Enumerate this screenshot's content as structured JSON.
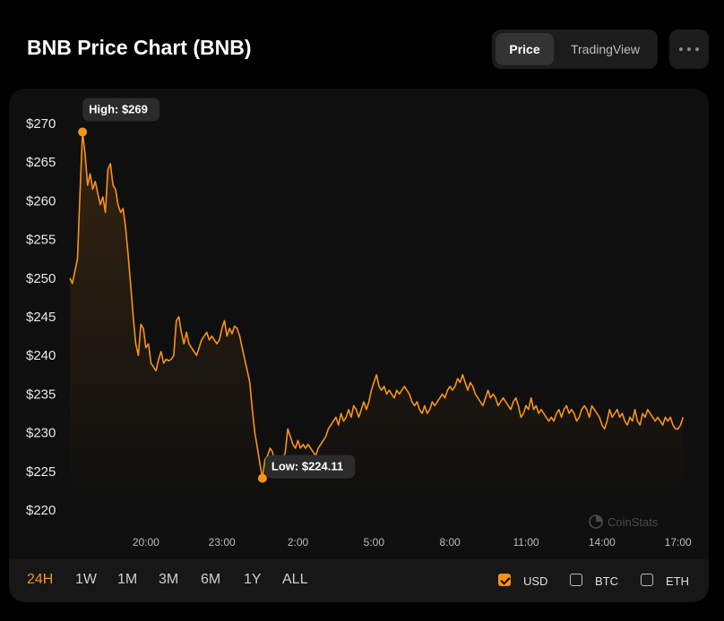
{
  "title": "BNB Price Chart (BNB)",
  "view_toggle": {
    "active": "Price",
    "inactive": "TradingView"
  },
  "more_icon": "more-dots-icon",
  "watermark": {
    "icon": "coinstats-logo-icon",
    "text": "CoinStats"
  },
  "timeframes": [
    {
      "label": "24H",
      "active": true
    },
    {
      "label": "1W",
      "active": false
    },
    {
      "label": "1M",
      "active": false
    },
    {
      "label": "3M",
      "active": false
    },
    {
      "label": "6M",
      "active": false
    },
    {
      "label": "1Y",
      "active": false
    },
    {
      "label": "ALL",
      "active": false
    }
  ],
  "currencies": [
    {
      "label": "USD",
      "checked": true
    },
    {
      "label": "BTC",
      "checked": false
    },
    {
      "label": "ETH",
      "checked": false
    }
  ],
  "colors": {
    "accent": "#f7931a",
    "background": "#000000",
    "panel": "#0f0f0f"
  },
  "chart_data": {
    "type": "area",
    "y_tick_labels": [
      "$270",
      "$265",
      "$260",
      "$255",
      "$250",
      "$245",
      "$240",
      "$235",
      "$230",
      "$225",
      "$220"
    ],
    "y_ticks": [
      270,
      265,
      260,
      255,
      250,
      245,
      240,
      235,
      230,
      225,
      220
    ],
    "ylim": [
      220,
      270
    ],
    "x_tick_labels": [
      "20:00",
      "23:00",
      "2:00",
      "5:00",
      "8:00",
      "11:00",
      "14:00",
      "17:00"
    ],
    "x_tick_hours": [
      3,
      6,
      9,
      12,
      15,
      18,
      21,
      24
    ],
    "xlim": [
      0,
      24.4
    ],
    "high": {
      "label": "High: $269",
      "hours": 0.5,
      "value": 268.9
    },
    "low": {
      "label": "Low: $224.11",
      "hours": 7.6,
      "value": 224.11
    },
    "series": [
      {
        "values": [
          [
            0.0,
            250.0
          ],
          [
            0.1,
            249.3
          ],
          [
            0.2,
            251.0
          ],
          [
            0.3,
            252.5
          ],
          [
            0.4,
            261.0
          ],
          [
            0.5,
            268.9
          ],
          [
            0.6,
            266.0
          ],
          [
            0.7,
            262.0
          ],
          [
            0.8,
            263.5
          ],
          [
            0.9,
            261.5
          ],
          [
            1.0,
            262.5
          ],
          [
            1.1,
            261.0
          ],
          [
            1.2,
            259.5
          ],
          [
            1.3,
            260.5
          ],
          [
            1.4,
            258.5
          ],
          [
            1.5,
            264.0
          ],
          [
            1.6,
            264.8
          ],
          [
            1.7,
            262.0
          ],
          [
            1.8,
            261.5
          ],
          [
            1.9,
            259.5
          ],
          [
            2.0,
            258.5
          ],
          [
            2.1,
            259.0
          ],
          [
            2.2,
            256.5
          ],
          [
            2.3,
            253.0
          ],
          [
            2.4,
            249.0
          ],
          [
            2.5,
            245.0
          ],
          [
            2.6,
            241.5
          ],
          [
            2.7,
            240.0
          ],
          [
            2.8,
            244.0
          ],
          [
            2.9,
            243.5
          ],
          [
            3.0,
            241.0
          ],
          [
            3.1,
            241.5
          ],
          [
            3.2,
            239.0
          ],
          [
            3.3,
            238.5
          ],
          [
            3.4,
            238.0
          ],
          [
            3.5,
            239.5
          ],
          [
            3.6,
            240.5
          ],
          [
            3.7,
            239.0
          ],
          [
            3.8,
            239.5
          ],
          [
            3.9,
            239.3
          ],
          [
            4.0,
            239.5
          ],
          [
            4.1,
            240.0
          ],
          [
            4.2,
            244.5
          ],
          [
            4.3,
            245.0
          ],
          [
            4.4,
            243.0
          ],
          [
            4.5,
            241.5
          ],
          [
            4.6,
            243.0
          ],
          [
            4.7,
            241.5
          ],
          [
            4.8,
            241.0
          ],
          [
            4.9,
            240.5
          ],
          [
            5.0,
            240.0
          ],
          [
            5.1,
            241.0
          ],
          [
            5.2,
            242.0
          ],
          [
            5.3,
            242.5
          ],
          [
            5.4,
            243.0
          ],
          [
            5.5,
            242.0
          ],
          [
            5.6,
            242.5
          ],
          [
            5.7,
            242.0
          ],
          [
            5.8,
            241.5
          ],
          [
            5.9,
            242.0
          ],
          [
            6.0,
            243.5
          ],
          [
            6.1,
            244.5
          ],
          [
            6.2,
            242.5
          ],
          [
            6.3,
            243.5
          ],
          [
            6.4,
            242.8
          ],
          [
            6.5,
            243.8
          ],
          [
            6.6,
            243.5
          ],
          [
            6.7,
            242.5
          ],
          [
            6.8,
            241.0
          ],
          [
            6.9,
            239.5
          ],
          [
            7.0,
            238.0
          ],
          [
            7.1,
            236.5
          ],
          [
            7.2,
            233.0
          ],
          [
            7.3,
            230.0
          ],
          [
            7.4,
            228.0
          ],
          [
            7.5,
            226.0
          ],
          [
            7.6,
            224.11
          ],
          [
            7.7,
            226.5
          ],
          [
            7.8,
            227.0
          ],
          [
            7.9,
            228.0
          ],
          [
            8.0,
            227.5
          ],
          [
            8.1,
            225.5
          ],
          [
            8.2,
            227.0
          ],
          [
            8.3,
            226.5
          ],
          [
            8.4,
            226.5
          ],
          [
            8.5,
            227.5
          ],
          [
            8.6,
            230.5
          ],
          [
            8.7,
            229.5
          ],
          [
            8.8,
            228.5
          ],
          [
            8.9,
            228.0
          ],
          [
            9.0,
            229.0
          ],
          [
            9.1,
            228.0
          ],
          [
            9.2,
            228.5
          ],
          [
            9.3,
            228.0
          ],
          [
            9.4,
            228.5
          ],
          [
            9.5,
            228.0
          ],
          [
            9.6,
            227.5
          ],
          [
            9.7,
            227.0
          ],
          [
            9.8,
            228.0
          ],
          [
            9.9,
            228.5
          ],
          [
            10.0,
            229.0
          ],
          [
            10.1,
            229.5
          ],
          [
            10.2,
            230.5
          ],
          [
            10.3,
            231.0
          ],
          [
            10.4,
            231.5
          ],
          [
            10.5,
            232.0
          ],
          [
            10.6,
            231.0
          ],
          [
            10.7,
            232.5
          ],
          [
            10.8,
            231.5
          ],
          [
            10.9,
            232.0
          ],
          [
            11.0,
            233.0
          ],
          [
            11.1,
            232.0
          ],
          [
            11.2,
            233.5
          ],
          [
            11.3,
            233.0
          ],
          [
            11.4,
            232.0
          ],
          [
            11.5,
            233.0
          ],
          [
            11.6,
            234.0
          ],
          [
            11.7,
            233.0
          ],
          [
            11.8,
            234.0
          ],
          [
            11.9,
            235.5
          ],
          [
            12.0,
            236.5
          ],
          [
            12.1,
            237.5
          ],
          [
            12.2,
            236.0
          ],
          [
            12.3,
            235.5
          ],
          [
            12.4,
            236.0
          ],
          [
            12.5,
            235.0
          ],
          [
            12.6,
            235.5
          ],
          [
            12.7,
            235.0
          ],
          [
            12.8,
            234.5
          ],
          [
            12.9,
            235.5
          ],
          [
            13.0,
            235.0
          ],
          [
            13.1,
            235.5
          ],
          [
            13.2,
            236.0
          ],
          [
            13.3,
            235.5
          ],
          [
            13.4,
            235.0
          ],
          [
            13.5,
            234.0
          ],
          [
            13.6,
            233.5
          ],
          [
            13.7,
            234.0
          ],
          [
            13.8,
            233.0
          ],
          [
            13.9,
            232.5
          ],
          [
            14.0,
            233.5
          ],
          [
            14.1,
            232.5
          ],
          [
            14.2,
            233.0
          ],
          [
            14.3,
            234.0
          ],
          [
            14.4,
            233.5
          ],
          [
            14.5,
            234.0
          ],
          [
            14.6,
            234.5
          ],
          [
            14.7,
            235.0
          ],
          [
            14.8,
            234.5
          ],
          [
            14.9,
            235.5
          ],
          [
            15.0,
            236.0
          ],
          [
            15.1,
            235.5
          ],
          [
            15.2,
            236.0
          ],
          [
            15.3,
            237.0
          ],
          [
            15.4,
            236.5
          ],
          [
            15.5,
            237.5
          ],
          [
            15.6,
            236.5
          ],
          [
            15.7,
            235.5
          ],
          [
            15.8,
            236.5
          ],
          [
            15.9,
            236.0
          ],
          [
            16.0,
            235.0
          ],
          [
            16.1,
            234.5
          ],
          [
            16.2,
            234.0
          ],
          [
            16.3,
            233.5
          ],
          [
            16.4,
            234.5
          ],
          [
            16.5,
            235.5
          ],
          [
            16.6,
            234.5
          ],
          [
            16.7,
            235.0
          ],
          [
            16.8,
            234.5
          ],
          [
            16.9,
            233.5
          ],
          [
            17.0,
            234.0
          ],
          [
            17.1,
            234.5
          ],
          [
            17.2,
            234.0
          ],
          [
            17.3,
            233.5
          ],
          [
            17.4,
            233.0
          ],
          [
            17.5,
            234.0
          ],
          [
            17.6,
            234.5
          ],
          [
            17.7,
            233.5
          ],
          [
            17.8,
            232.0
          ],
          [
            17.9,
            232.5
          ],
          [
            18.0,
            233.5
          ],
          [
            18.1,
            233.0
          ],
          [
            18.2,
            234.5
          ],
          [
            18.3,
            233.0
          ],
          [
            18.4,
            233.5
          ],
          [
            18.5,
            232.5
          ],
          [
            18.6,
            233.0
          ],
          [
            18.7,
            232.5
          ],
          [
            18.8,
            232.0
          ],
          [
            18.9,
            231.5
          ],
          [
            19.0,
            232.0
          ],
          [
            19.1,
            231.5
          ],
          [
            19.2,
            232.5
          ],
          [
            19.3,
            233.0
          ],
          [
            19.4,
            232.0
          ],
          [
            19.5,
            233.0
          ],
          [
            19.6,
            233.5
          ],
          [
            19.7,
            232.5
          ],
          [
            19.8,
            233.0
          ],
          [
            19.9,
            232.5
          ],
          [
            20.0,
            231.5
          ],
          [
            20.1,
            232.0
          ],
          [
            20.2,
            233.0
          ],
          [
            20.3,
            233.5
          ],
          [
            20.4,
            233.0
          ],
          [
            20.5,
            232.0
          ],
          [
            20.6,
            233.5
          ],
          [
            20.7,
            233.0
          ],
          [
            20.8,
            232.5
          ],
          [
            20.9,
            232.0
          ],
          [
            21.0,
            231.0
          ],
          [
            21.1,
            230.5
          ],
          [
            21.2,
            231.5
          ],
          [
            21.3,
            233.0
          ],
          [
            21.4,
            232.0
          ],
          [
            21.5,
            232.5
          ],
          [
            21.6,
            233.0
          ],
          [
            21.7,
            232.0
          ],
          [
            21.8,
            232.5
          ],
          [
            21.9,
            231.5
          ],
          [
            22.0,
            231.0
          ],
          [
            22.1,
            232.0
          ],
          [
            22.2,
            231.5
          ],
          [
            22.3,
            233.0
          ],
          [
            22.4,
            231.5
          ],
          [
            22.5,
            231.0
          ],
          [
            22.6,
            232.5
          ],
          [
            22.7,
            232.0
          ],
          [
            22.8,
            233.0
          ],
          [
            22.9,
            232.5
          ],
          [
            23.0,
            232.0
          ],
          [
            23.1,
            231.5
          ],
          [
            23.2,
            232.0
          ],
          [
            23.3,
            231.5
          ],
          [
            23.4,
            231.0
          ],
          [
            23.5,
            232.0
          ],
          [
            23.6,
            231.5
          ],
          [
            23.7,
            232.0
          ],
          [
            23.8,
            231.0
          ],
          [
            23.9,
            230.5
          ],
          [
            24.0,
            230.5
          ],
          [
            24.1,
            231.0
          ],
          [
            24.2,
            232.0
          ]
        ]
      }
    ]
  }
}
